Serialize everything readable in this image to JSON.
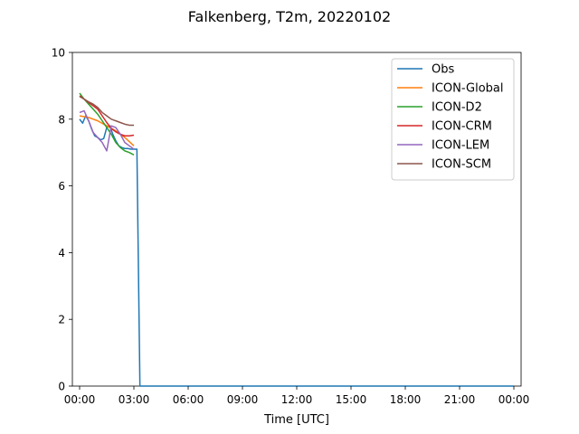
{
  "chart_data": {
    "type": "line",
    "title": "Falkenberg, T2m, 20220102",
    "xlabel": "Time [UTC]",
    "ylabel": "",
    "xlim": [
      -0.4,
      24.4
    ],
    "ylim": [
      0,
      10
    ],
    "x_ticks": [
      0,
      3,
      6,
      9,
      12,
      15,
      18,
      21,
      24
    ],
    "x_tick_labels": [
      "00:00",
      "03:00",
      "06:00",
      "09:00",
      "12:00",
      "15:00",
      "18:00",
      "21:00",
      "00:00"
    ],
    "y_ticks": [
      0,
      2,
      4,
      6,
      8,
      10
    ],
    "y_tick_labels": [
      "0",
      "2",
      "4",
      "6",
      "8",
      "10"
    ],
    "grid": false,
    "legend_position": "top-right",
    "series": [
      {
        "name": "Obs",
        "color": "#1f77b4",
        "x": [
          0,
          0.1667,
          0.3333,
          0.5,
          0.6667,
          0.8333,
          1.0,
          1.1667,
          1.3333,
          1.5,
          1.6667,
          1.8333,
          2.0,
          2.1667,
          2.3333,
          2.5,
          2.6667,
          2.8333,
          3.0,
          3.1667,
          3.3333,
          3.5,
          6,
          9,
          12,
          15,
          18,
          21,
          24
        ],
        "y": [
          8.0,
          7.88,
          8.1,
          7.95,
          7.7,
          7.5,
          7.45,
          7.38,
          7.42,
          7.75,
          7.8,
          7.55,
          7.35,
          7.2,
          7.15,
          7.12,
          7.12,
          7.1,
          7.1,
          7.1,
          0.0,
          0.0,
          0,
          0,
          0,
          0,
          0,
          0,
          0
        ]
      },
      {
        "name": "ICON-Global",
        "color": "#ff7f0e",
        "x": [
          0,
          0.5,
          1.0,
          1.5,
          2.0,
          2.5,
          3.0
        ],
        "y": [
          8.1,
          8.05,
          7.95,
          7.8,
          7.65,
          7.45,
          7.2
        ]
      },
      {
        "name": "ICON-D2",
        "color": "#2ca02c",
        "x": [
          0,
          0.25,
          0.5,
          0.75,
          1.0,
          1.25,
          1.5,
          1.75,
          2.0,
          2.25,
          2.5,
          2.75,
          3.0
        ],
        "y": [
          8.78,
          8.6,
          8.45,
          8.3,
          8.15,
          7.95,
          7.75,
          7.55,
          7.3,
          7.15,
          7.05,
          7.0,
          6.93
        ]
      },
      {
        "name": "ICON-CRM",
        "color": "#d62728",
        "x": [
          0,
          0.25,
          0.5,
          0.75,
          1.0,
          1.25,
          1.5,
          1.75,
          2.0,
          2.25,
          2.5,
          2.75,
          3.0
        ],
        "y": [
          8.7,
          8.6,
          8.5,
          8.4,
          8.3,
          8.1,
          7.9,
          7.72,
          7.62,
          7.55,
          7.5,
          7.5,
          7.52
        ]
      },
      {
        "name": "ICON-LEM",
        "color": "#9467bd",
        "x": [
          0,
          0.25,
          0.5,
          0.75,
          1.0,
          1.25,
          1.5,
          1.75,
          2.0,
          2.25,
          2.5,
          2.75,
          3.0
        ],
        "y": [
          8.2,
          8.25,
          7.95,
          7.6,
          7.45,
          7.3,
          7.05,
          7.8,
          7.75,
          7.55,
          7.3,
          7.2,
          7.1
        ]
      },
      {
        "name": "ICON-SCM",
        "color": "#8c564b",
        "x": [
          0,
          0.25,
          0.5,
          0.75,
          1.0,
          1.25,
          1.5,
          1.75,
          2.0,
          2.25,
          2.5,
          2.75,
          3.0
        ],
        "y": [
          8.68,
          8.6,
          8.52,
          8.45,
          8.35,
          8.2,
          8.1,
          8.0,
          7.95,
          7.9,
          7.85,
          7.82,
          7.82
        ]
      }
    ]
  }
}
